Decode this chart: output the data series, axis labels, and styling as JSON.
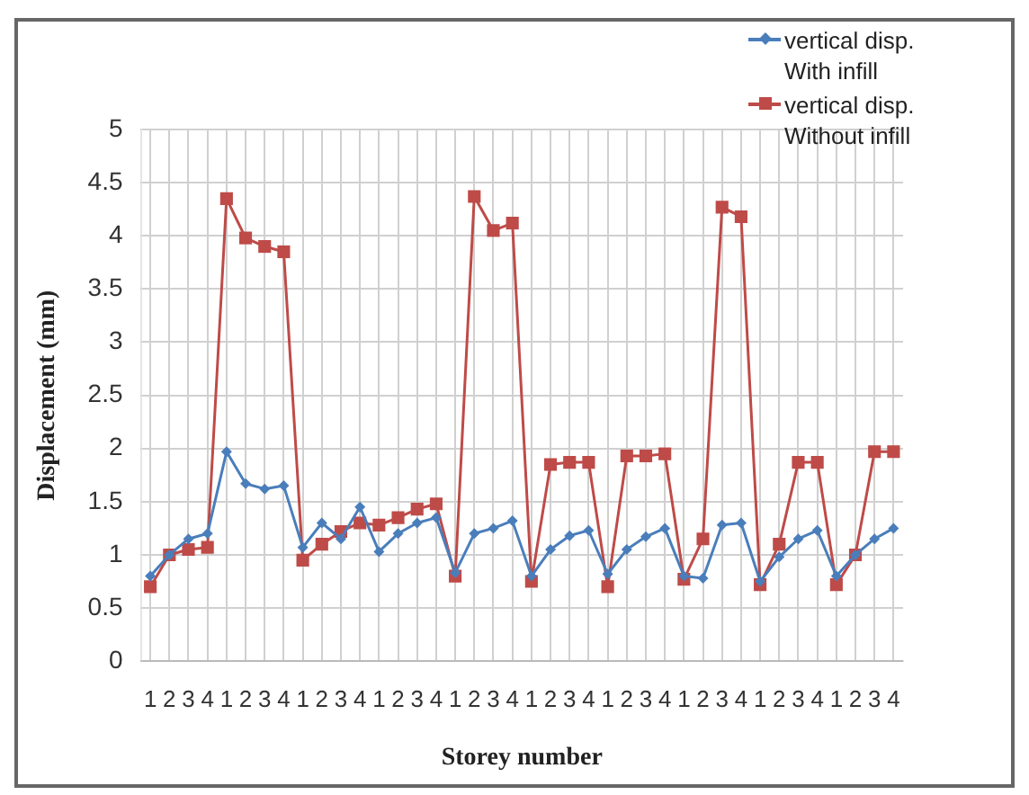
{
  "chart_data": {
    "type": "line",
    "xlabel": "Storey number",
    "ylabel": "Displacement (mm)",
    "categories": [
      "1",
      "2",
      "3",
      "4",
      "1",
      "2",
      "3",
      "4",
      "1",
      "2",
      "3",
      "4",
      "1",
      "2",
      "3",
      "4",
      "1",
      "2",
      "3",
      "4",
      "1",
      "2",
      "3",
      "4",
      "1",
      "2",
      "3",
      "4",
      "1",
      "2",
      "3",
      "4",
      "1",
      "2",
      "3",
      "4",
      "1",
      "2",
      "3",
      "4"
    ],
    "series": [
      {
        "name": "vertical disp. With infill",
        "color": "#4a7ebb",
        "marker": "diamond",
        "values": [
          0.8,
          1.0,
          1.15,
          1.2,
          1.97,
          1.67,
          1.62,
          1.65,
          1.07,
          1.3,
          1.15,
          1.45,
          1.03,
          1.2,
          1.3,
          1.35,
          0.83,
          1.2,
          1.25,
          1.32,
          0.8,
          1.05,
          1.18,
          1.23,
          0.82,
          1.05,
          1.17,
          1.25,
          0.8,
          0.78,
          1.28,
          1.3,
          0.75,
          0.98,
          1.15,
          1.23,
          0.8,
          1.0,
          1.15,
          1.25
        ]
      },
      {
        "name": "vertical disp. Without infill",
        "color": "#be4b48",
        "marker": "square",
        "values": [
          0.7,
          1.0,
          1.05,
          1.07,
          4.35,
          3.98,
          3.9,
          3.85,
          0.95,
          1.1,
          1.22,
          1.3,
          1.28,
          1.35,
          1.43,
          1.48,
          0.8,
          4.37,
          4.05,
          4.12,
          0.75,
          1.85,
          1.87,
          1.87,
          0.7,
          1.93,
          1.93,
          1.95,
          0.77,
          1.15,
          4.27,
          4.18,
          0.72,
          1.1,
          1.87,
          1.87,
          0.72,
          1.0,
          1.97,
          1.97
        ]
      }
    ],
    "ylim": [
      0,
      5
    ],
    "yticks": [
      0,
      0.5,
      1,
      1.5,
      2,
      2.5,
      3,
      3.5,
      4,
      4.5,
      5
    ],
    "grid": true,
    "legend": "top right"
  }
}
